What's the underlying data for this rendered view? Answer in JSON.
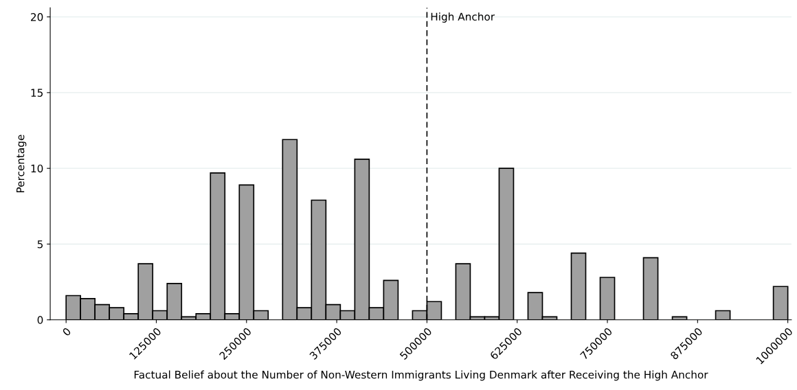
{
  "chart_data": {
    "type": "histogram",
    "xlabel": "Factual Belief about the Number of Non-Western Immigrants Living Denmark after Receiving the High Anchor",
    "ylabel": "Percentage",
    "bins": [
      0,
      20000,
      40000,
      60000,
      80000,
      100000,
      120000,
      140000,
      160000,
      180000,
      200000,
      220000,
      240000,
      260000,
      280000,
      300000,
      320000,
      340000,
      360000,
      380000,
      400000,
      420000,
      440000,
      460000,
      480000,
      500000,
      520000,
      540000,
      560000,
      580000,
      600000,
      620000,
      640000,
      660000,
      680000,
      700000,
      720000,
      740000,
      760000,
      780000,
      800000,
      820000,
      840000,
      860000,
      880000,
      900000,
      920000,
      940000,
      960000,
      980000,
      1000000
    ],
    "values": [
      1.6,
      1.4,
      1.0,
      0.8,
      0.4,
      3.7,
      0.6,
      2.4,
      0.2,
      0.4,
      9.7,
      0.4,
      8.9,
      0.6,
      0,
      11.9,
      0.8,
      7.9,
      1.0,
      0.6,
      10.6,
      0.8,
      2.6,
      0,
      0.6,
      1.2,
      0,
      3.7,
      0.2,
      0.2,
      10.0,
      0,
      1.8,
      0.2,
      0,
      4.4,
      0,
      2.8,
      0,
      0,
      4.1,
      0,
      0.2,
      0,
      0,
      0.6,
      0,
      0,
      0,
      2.2
    ],
    "color": "#a0a0a0",
    "xlim": [
      -22000,
      1005000
    ],
    "ylim": [
      0,
      20.6
    ],
    "xticks": [
      0,
      125000,
      250000,
      375000,
      500000,
      625000,
      750000,
      875000,
      1000000
    ],
    "yticks": [
      0,
      5,
      10,
      15,
      20
    ],
    "grid": "y",
    "ref_lines": [
      {
        "axis": "x",
        "value": 500000,
        "label": "High Anchor",
        "color": "#000000",
        "line_style": "dashed"
      }
    ]
  }
}
